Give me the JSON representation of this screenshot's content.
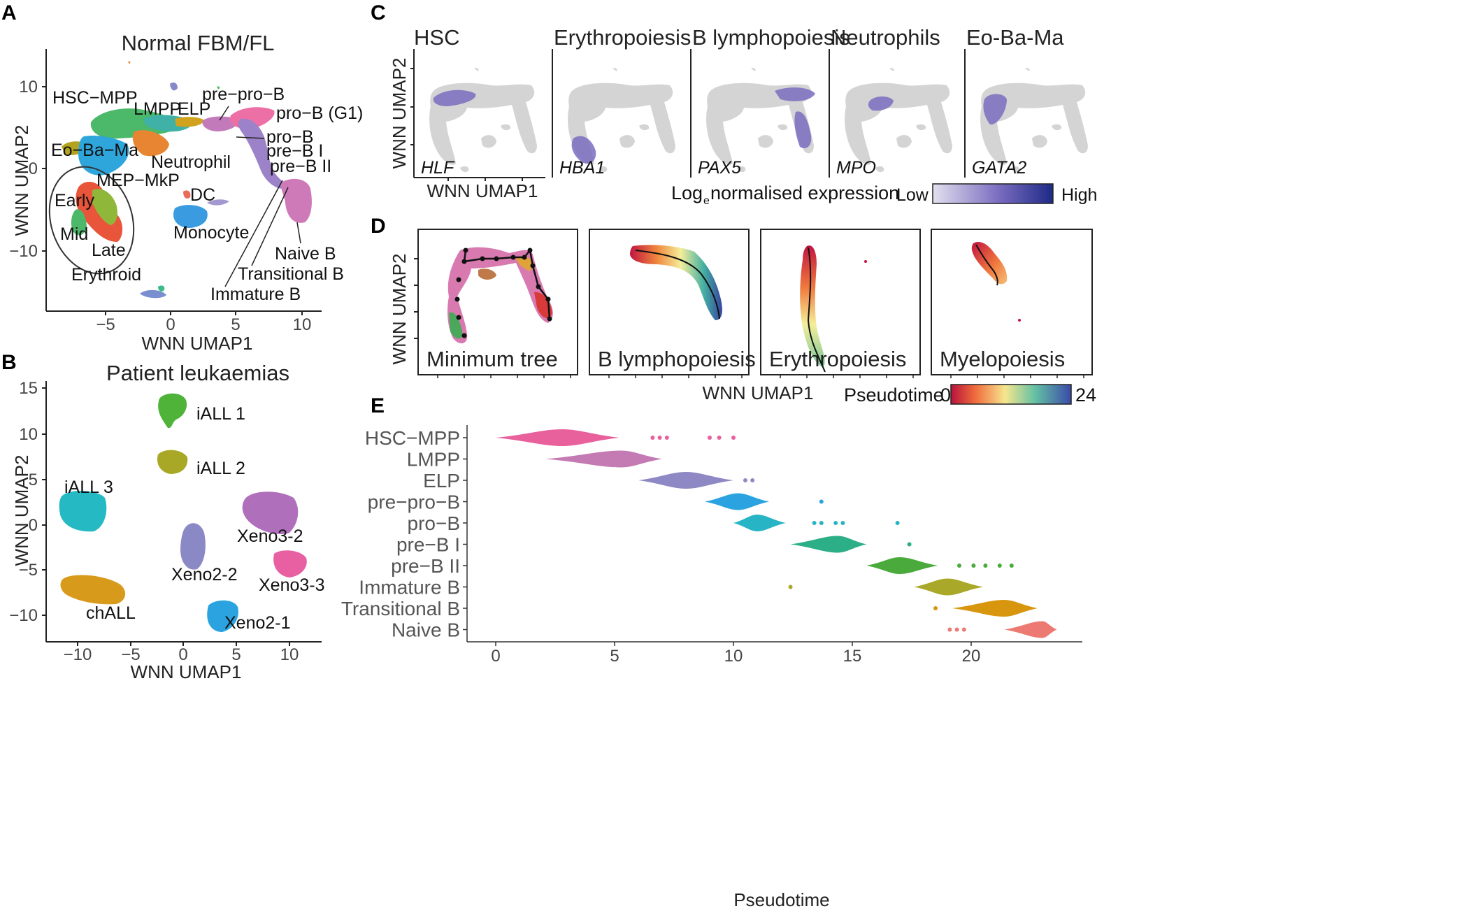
{
  "panel_letters": {
    "a": "A",
    "b": "B",
    "c": "C",
    "d": "D",
    "e": "E"
  },
  "panelA": {
    "title": "Normal FBM/FL",
    "xlabel": "WNN UMAP1",
    "ylabel": "WNN UMAP2",
    "xticks": [
      "−5",
      "0",
      "5",
      "10"
    ],
    "yticks": [
      "10",
      "0",
      "−10"
    ],
    "labels": {
      "hsc_mpp": "HSC−MPP",
      "lmpp": "LMPP",
      "elp": "ELP",
      "pre_pro_b": "pre−pro−B",
      "pro_b_g1": "pro−B (G1)",
      "pro_b": "pro−B",
      "pre_b_i": "pre−B I",
      "pre_b_ii": "pre−B II",
      "eo_ba_ma": "Eo−Ba−Ma",
      "neutrophil": "Neutrophil",
      "mep_mkp": "MEP−MkP",
      "early": "Early",
      "mid": "Mid",
      "late": "Late",
      "erythroid": "Erythroid",
      "dc": "DC",
      "monocyte": "Monocyte",
      "naive_b": "Naive B",
      "transitional_b": "Transitional B",
      "immature_b": "Immature B"
    }
  },
  "panelB": {
    "title": "Patient leukaemias",
    "xlabel": "WNN UMAP1",
    "ylabel": "WNN UMAP2",
    "xticks": [
      "−10",
      "−5",
      "0",
      "5",
      "10"
    ],
    "yticks": [
      "15",
      "10",
      "5",
      "0",
      "−5",
      "−10"
    ],
    "labels": {
      "iall1": "iALL 1",
      "iall2": "iALL 2",
      "iall3": "iALL 3",
      "chall": "chALL",
      "xeno2_2": "Xeno2-2",
      "xeno2_1": "Xeno2-1",
      "xeno3_2": "Xeno3-2",
      "xeno3_3": "Xeno3-3"
    }
  },
  "panelC": {
    "titles": [
      "HSC",
      "Erythropoiesis",
      "B lymphopoiesis",
      "Neutrophils",
      "Eo-Ba-Ma"
    ],
    "genes": [
      "HLF",
      "HBA1",
      "PAX5",
      "MPO",
      "GATA2"
    ],
    "xlabel": "WNN UMAP1",
    "ylabel": "WNN UMAP2",
    "legend_title_pre": "Log",
    "legend_title_sub": "e",
    "legend_title_post": " normalised expression",
    "legend_low": "Low",
    "legend_high": "High"
  },
  "panelD": {
    "titles": [
      "Minimum tree",
      "B lymphopoiesis",
      "Erythropoiesis",
      "Myelopoiesis"
    ],
    "xlabel": "WNN UMAP1",
    "ylabel": "WNN UMAP2",
    "legend_title": "Pseudotime",
    "legend_min": "0",
    "legend_max": "24"
  },
  "chart_data": {
    "type": "scatter",
    "xlabel": "Pseudotime",
    "xlim": [
      0,
      24
    ],
    "xticks": [
      "0",
      "5",
      "10",
      "15",
      "20"
    ],
    "categories": [
      "HSC−MPP",
      "LMPP",
      "ELP",
      "pre−pro−B",
      "pro−B",
      "pre−B I",
      "pre−B II",
      "Immature B",
      "Transitional B",
      "Naive B"
    ],
    "series": [
      {
        "category": "HSC−MPP",
        "color": "#e8609c",
        "core": [
          0,
          5.2
        ],
        "peak": 2.8,
        "outliers": [
          6.6,
          6.9,
          7.2,
          9.0,
          9.4,
          10.0
        ]
      },
      {
        "category": "LMPP",
        "color": "#c47ab3",
        "core": [
          2.1,
          7.0
        ],
        "peak": 5.3,
        "outliers": []
      },
      {
        "category": "ELP",
        "color": "#8e89c4",
        "core": [
          6.0,
          10.0
        ],
        "peak": 8.0,
        "outliers": [
          10.5,
          10.8
        ]
      },
      {
        "category": "pre−pro−B",
        "color": "#2aa3e0",
        "core": [
          8.8,
          11.5
        ],
        "peak": 10.2,
        "outliers": [
          13.7
        ]
      },
      {
        "category": "pro−B",
        "color": "#27b4c4",
        "core": [
          10.0,
          12.2
        ],
        "peak": 11.0,
        "outliers": [
          13.4,
          13.7,
          14.3,
          14.6,
          16.9
        ]
      },
      {
        "category": "pre−B I",
        "color": "#2cae86",
        "core": [
          12.4,
          15.6
        ],
        "peak": 14.4,
        "outliers": [
          17.4
        ]
      },
      {
        "category": "pre−B II",
        "color": "#4aaa3c",
        "core": [
          15.6,
          18.6
        ],
        "peak": 17.0,
        "outliers": [
          19.5,
          20.1,
          20.6,
          21.2,
          21.7
        ]
      },
      {
        "category": "Immature B",
        "color": "#a9a829",
        "core": [
          17.6,
          20.5
        ],
        "peak": 19.0,
        "outliers": [
          12.4
        ]
      },
      {
        "category": "Transitional B",
        "color": "#d8950e",
        "core": [
          19.2,
          22.8
        ],
        "peak": 21.4,
        "outliers": [
          18.5
        ]
      },
      {
        "category": "Naive B",
        "color": "#ec7a72",
        "core": [
          21.4,
          23.6
        ],
        "peak": 23.0,
        "outliers": [
          19.1,
          19.4,
          19.7
        ]
      }
    ]
  },
  "colors": {
    "expr_low": "#e2e0ee",
    "expr_mid": "#7a6cc0",
    "expr_high": "#1d2a86",
    "grey_cells": "#d4d4d4"
  }
}
